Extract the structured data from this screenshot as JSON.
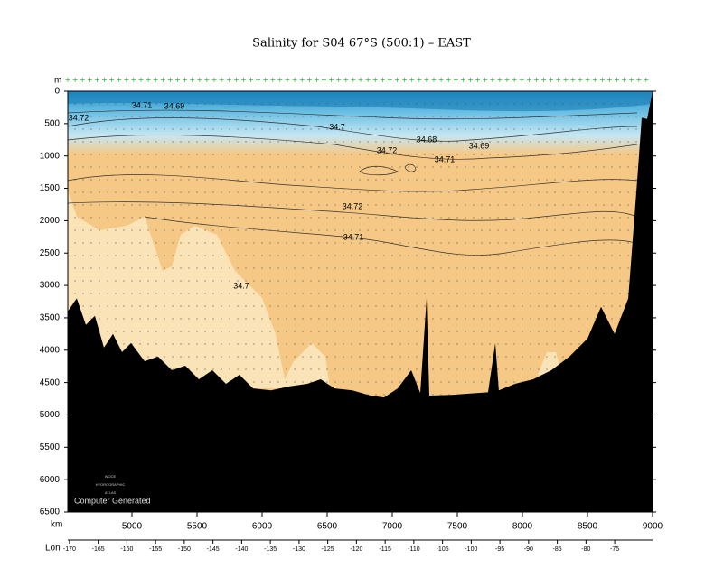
{
  "chart_data": {
    "type": "section",
    "title": "Salinity for S04 67°S (500:1) – EAST",
    "y_label": "m",
    "x_label": "km",
    "lon_label": "Lon",
    "xlim": [
      4507,
      9000
    ],
    "xticks": [
      5000,
      5500,
      6000,
      6500,
      7000,
      7500,
      8000,
      8500,
      9000
    ],
    "ylim": [
      0,
      6500
    ],
    "yticks": [
      0,
      500,
      1000,
      1500,
      2000,
      2500,
      3000,
      3500,
      4000,
      4500,
      5000,
      5500,
      6000,
      6500
    ],
    "lonlim": [
      -170.3,
      -68.4
    ],
    "lonticks": [
      -170,
      -165,
      -160,
      -155,
      -150,
      -145,
      -140,
      -135,
      -130,
      -125,
      -120,
      -115,
      -110,
      -105,
      -100,
      -95,
      -90,
      -85,
      -80,
      -75
    ],
    "contour_labels": [
      34.71,
      34.69,
      34.72,
      34.7,
      34.72,
      34.68,
      34.69,
      34.71,
      34.72,
      34.71,
      34.7
    ],
    "bathymetry": {
      "x": [
        4507,
        4576,
        4646,
        4715,
        4785,
        4854,
        4924,
        4993,
        5097,
        5201,
        5306,
        5410,
        5514,
        5618,
        5722,
        5826,
        5931,
        6069,
        6208,
        6347,
        6451,
        6556,
        6694,
        6833,
        6937,
        7042,
        7146,
        7215,
        7264,
        7285,
        7458,
        7597,
        7736,
        7792,
        7819,
        7944,
        8083,
        8222,
        8361,
        8500,
        8604,
        8708,
        8813,
        8882,
        8917,
        8958,
        9000
      ],
      "depth": [
        3400,
        3200,
        3610,
        3470,
        3960,
        3750,
        4030,
        3890,
        4170,
        4100,
        4310,
        4240,
        4450,
        4310,
        4520,
        4380,
        4590,
        4620,
        4560,
        4520,
        4450,
        4590,
        4620,
        4700,
        4730,
        4590,
        4310,
        4660,
        3200,
        4700,
        4690,
        4670,
        4650,
        3890,
        4620,
        4520,
        4450,
        4310,
        4100,
        3820,
        3330,
        3750,
        3200,
        1380,
        410,
        430,
        0
      ],
      "color": "#000000"
    },
    "watermark": [
      "WOCE",
      "HYDROGRAPHIC",
      "ATLAS"
    ],
    "note": "Computer Generated"
  }
}
